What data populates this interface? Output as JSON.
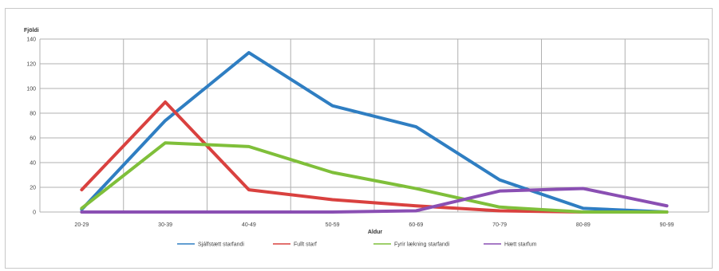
{
  "chart_data": {
    "type": "line",
    "ylabel": "Fjöldi",
    "xlabel": "Aldur",
    "ylim": [
      0,
      140
    ],
    "yticks": [
      0,
      20,
      40,
      60,
      80,
      100,
      120,
      140
    ],
    "categories": [
      "20-29",
      "30-39",
      "40-49",
      "50-59",
      "60-69",
      "70-79",
      "80-89",
      "90-99"
    ],
    "grid": true,
    "legend_position": "bottom",
    "series": [
      {
        "name": "Sjálfstætt starfandi",
        "color": "#2f7ec2",
        "values": [
          2,
          74,
          129,
          86,
          69,
          26,
          3,
          0
        ]
      },
      {
        "name": "Fullt starf",
        "color": "#d9413f",
        "values": [
          18,
          89,
          18,
          10,
          5,
          1,
          0,
          0
        ]
      },
      {
        "name": "Fyrir lækning starfandi",
        "color": "#7fbf3a",
        "values": [
          3,
          56,
          53,
          32,
          19,
          4,
          0,
          0
        ]
      },
      {
        "name": "Hætt starfum",
        "color": "#8a4fb3",
        "values": [
          0,
          0,
          0,
          0,
          1,
          17,
          19,
          5
        ]
      }
    ]
  }
}
